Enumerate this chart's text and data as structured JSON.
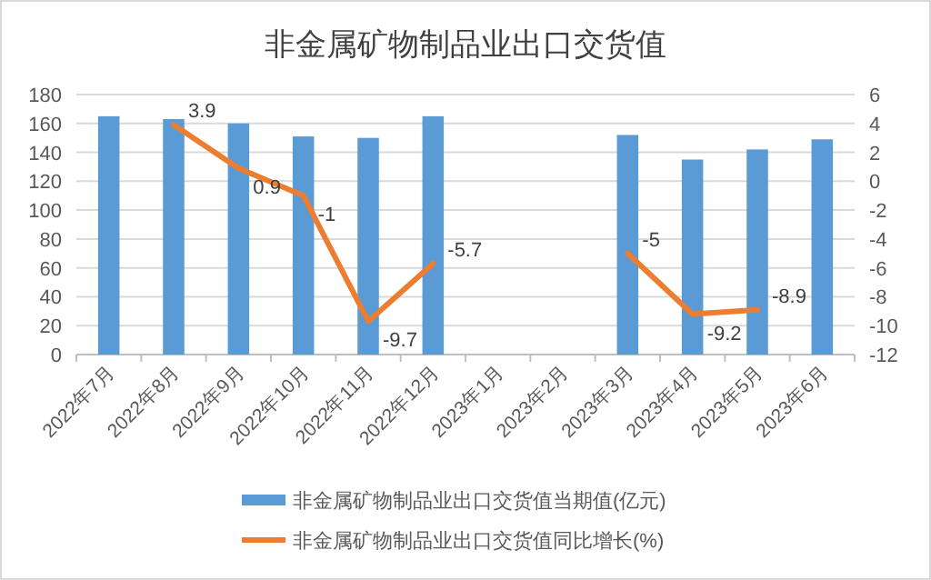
{
  "chart_data": {
    "type": "bar",
    "title": "非金属矿物制品业出口交货值",
    "categories": [
      "2022年7月",
      "2022年8月",
      "2022年9月",
      "2022年10月",
      "2022年11月",
      "2022年12月",
      "2023年1月",
      "2023年2月",
      "2023年3月",
      "2023年4月",
      "2023年5月",
      "2023年6月"
    ],
    "series": [
      {
        "name": "非金属矿物制品业出口交货值当期值(亿元)",
        "color": "#5b9bd5",
        "values": [
          165,
          163,
          160,
          151,
          150,
          165,
          null,
          null,
          152,
          135,
          142,
          149
        ]
      },
      {
        "name": "非金属矿物制品业出口交货值同比增长(%)",
        "type": "line",
        "axis": "y2",
        "color": "#ed7d31",
        "values": [
          null,
          3.9,
          0.9,
          -1,
          -9.7,
          -5.7,
          null,
          null,
          -5,
          -9.2,
          -8.9,
          null
        ],
        "value_labels": [
          null,
          "3.9",
          "0.9",
          "-1",
          "-9.7",
          "-5.7",
          null,
          null,
          "-5",
          "-9.2",
          "-8.9",
          null
        ]
      }
    ],
    "ylim": [
      0,
      180
    ],
    "yticks": [
      0,
      20,
      40,
      60,
      80,
      100,
      120,
      140,
      160,
      180
    ],
    "y2lim": [
      -12,
      6
    ],
    "y2ticks": [
      -12,
      -10,
      -8,
      -6,
      -4,
      -2,
      0,
      2,
      4,
      6
    ],
    "grid": "y",
    "legend": "bottom"
  }
}
